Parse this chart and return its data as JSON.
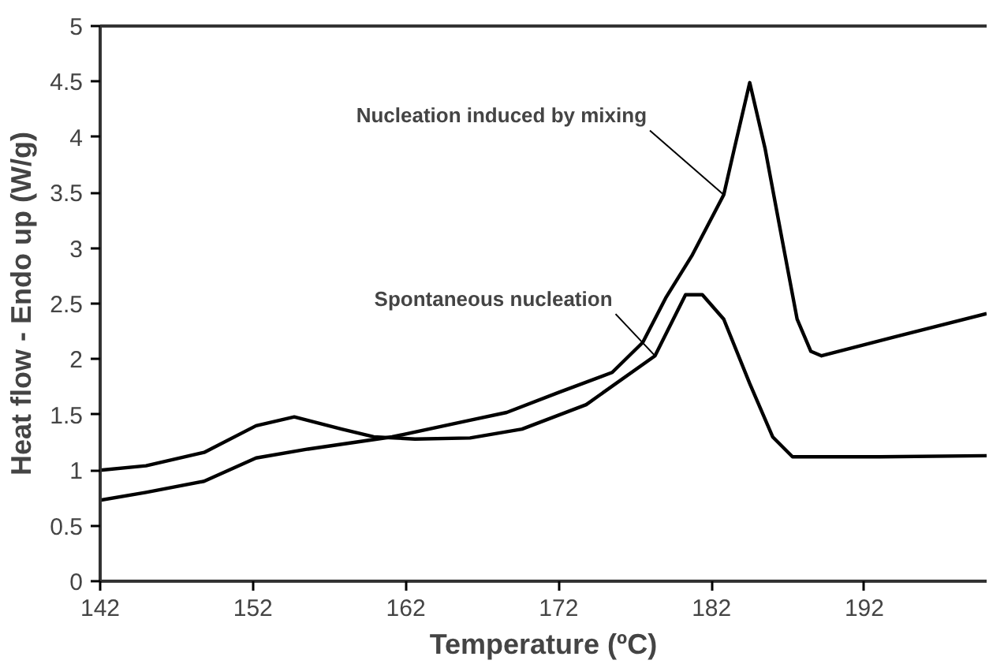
{
  "chart_data": {
    "type": "line",
    "xlabel": "Temperature (ºC)",
    "ylabel": "Heat flow - Endo up (W/g)",
    "xlim": [
      142,
      200
    ],
    "xticks": [
      142,
      152,
      162,
      172,
      182,
      192
    ],
    "ylim": [
      0,
      5
    ],
    "yticks": [
      0,
      0.5,
      1,
      1.5,
      2,
      2.5,
      3,
      3.5,
      4,
      4.5,
      5
    ],
    "grid": false,
    "marker": "none",
    "line_style": "solid",
    "series": [
      {
        "color": "#000000",
        "x": [
          142,
          145,
          148.8,
          152.2,
          155.6,
          161.1,
          166.2,
          168.6,
          172,
          175.5,
          177.5,
          179,
          180.75,
          182.8,
          183.5,
          184.5,
          185.5,
          186.6,
          187.6,
          188.5,
          189.2,
          194,
          200
        ],
        "values": [
          0.73,
          0.8,
          0.9,
          1.11,
          1.19,
          1.3,
          1.45,
          1.52,
          1.7,
          1.88,
          2.15,
          2.55,
          2.94,
          3.48,
          3.9,
          4.49,
          3.9,
          3.09,
          2.36,
          2.07,
          2.03,
          2.2,
          2.41
        ]
      },
      {
        "color": "#000000",
        "x": [
          142,
          145,
          148.8,
          152.2,
          154.7,
          157.8,
          159.9,
          162.6,
          166.2,
          169.6,
          173.8,
          178.3,
          180.3,
          181.4,
          182.8,
          184.5,
          186,
          187.3,
          193,
          200
        ],
        "values": [
          1.0,
          1.04,
          1.16,
          1.4,
          1.48,
          1.37,
          1.3,
          1.28,
          1.29,
          1.37,
          1.59,
          2.03,
          2.58,
          2.58,
          2.36,
          1.78,
          1.3,
          1.12,
          1.12,
          1.13
        ]
      }
    ],
    "annotations": [
      {
        "text": "Nucleation induced by mixing",
        "x": 182.8,
        "y": 3.48
      },
      {
        "text": "Spontaneous nucleation",
        "x": 178.3,
        "y": 2.03
      }
    ]
  }
}
